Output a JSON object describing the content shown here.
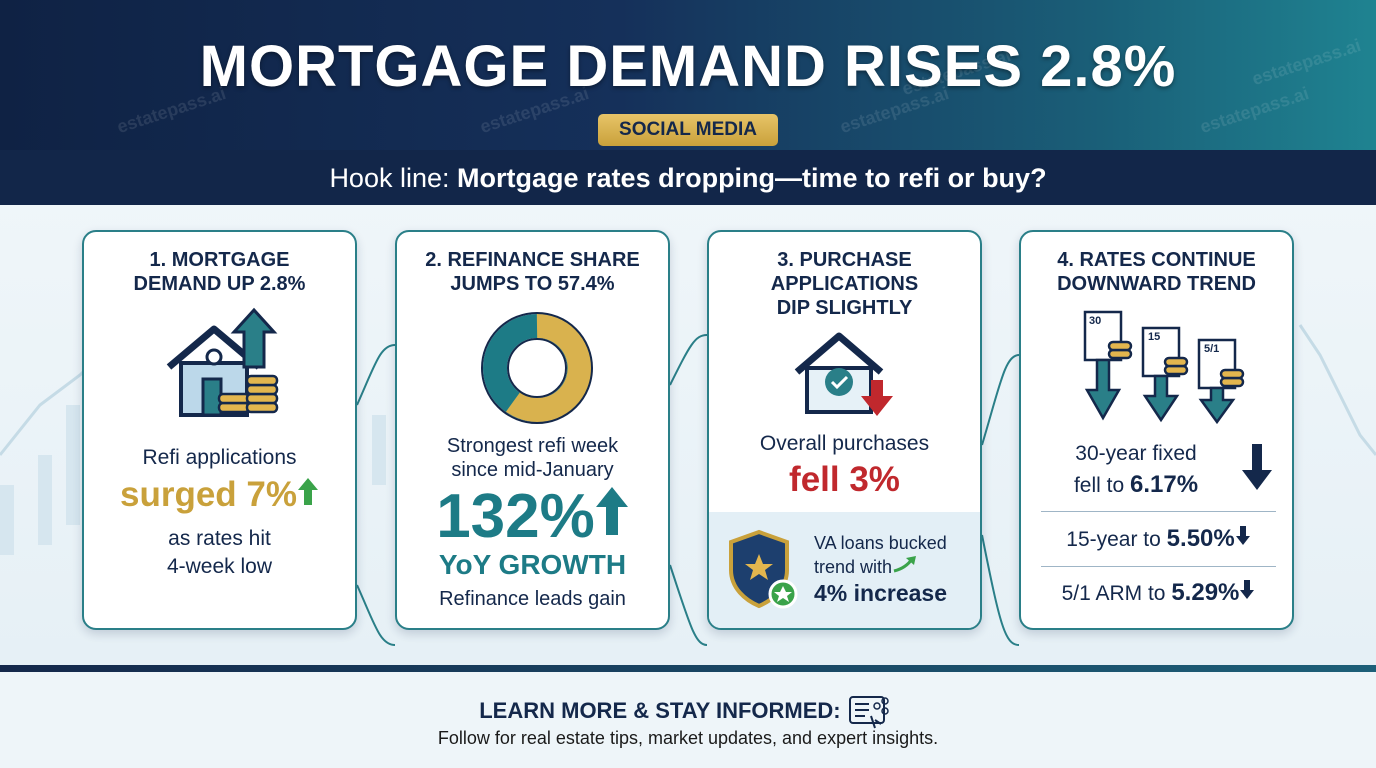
{
  "header": {
    "title": "MORTGAGE DEMAND RISES 2.8%",
    "badge": "SOCIAL MEDIA",
    "hook_label": "Hook line:",
    "hook_text": "Mortgage rates dropping—time to refi or buy?",
    "watermark": "estatepass.ai"
  },
  "cards": [
    {
      "title": [
        "1. MORTGAGE",
        "DEMAND UP 2.8%"
      ],
      "lines": [
        "Refi applications"
      ],
      "highlight": "surged 7%",
      "after": [
        "as rates hit",
        "4-week low"
      ]
    },
    {
      "title": [
        "2. REFINANCE SHARE",
        "JUMPS TO 57.4%"
      ],
      "lines": [
        "Strongest refi week",
        "since mid-January"
      ],
      "big": "132%",
      "big_sub": "YoY GROWTH",
      "note": "Refinance leads gain"
    },
    {
      "title": [
        "3. PURCHASE",
        "APPLICATIONS",
        "DIP SLIGHTLY"
      ],
      "lines": [
        "Overall purchases"
      ],
      "highlight": "fell 3%",
      "callout": [
        "VA loans bucked",
        "trend with"
      ],
      "callout_bold": "4% increase"
    },
    {
      "title": [
        "4. RATES CONTINUE",
        "DOWNWARD TREND"
      ],
      "doc_labels": [
        "30",
        "15",
        "5/1"
      ],
      "rates": [
        {
          "label": "30-year fixed",
          "label2": "fell to",
          "value": "6.17%"
        },
        {
          "label": "15-year to",
          "value": "5.50%"
        },
        {
          "label": "5/1 ARM to",
          "value": "5.29%"
        }
      ]
    }
  ],
  "footer": {
    "heading": "LEARN MORE & STAY INFORMED:",
    "text": "Follow for real estate tips, market updates, and expert insights."
  }
}
